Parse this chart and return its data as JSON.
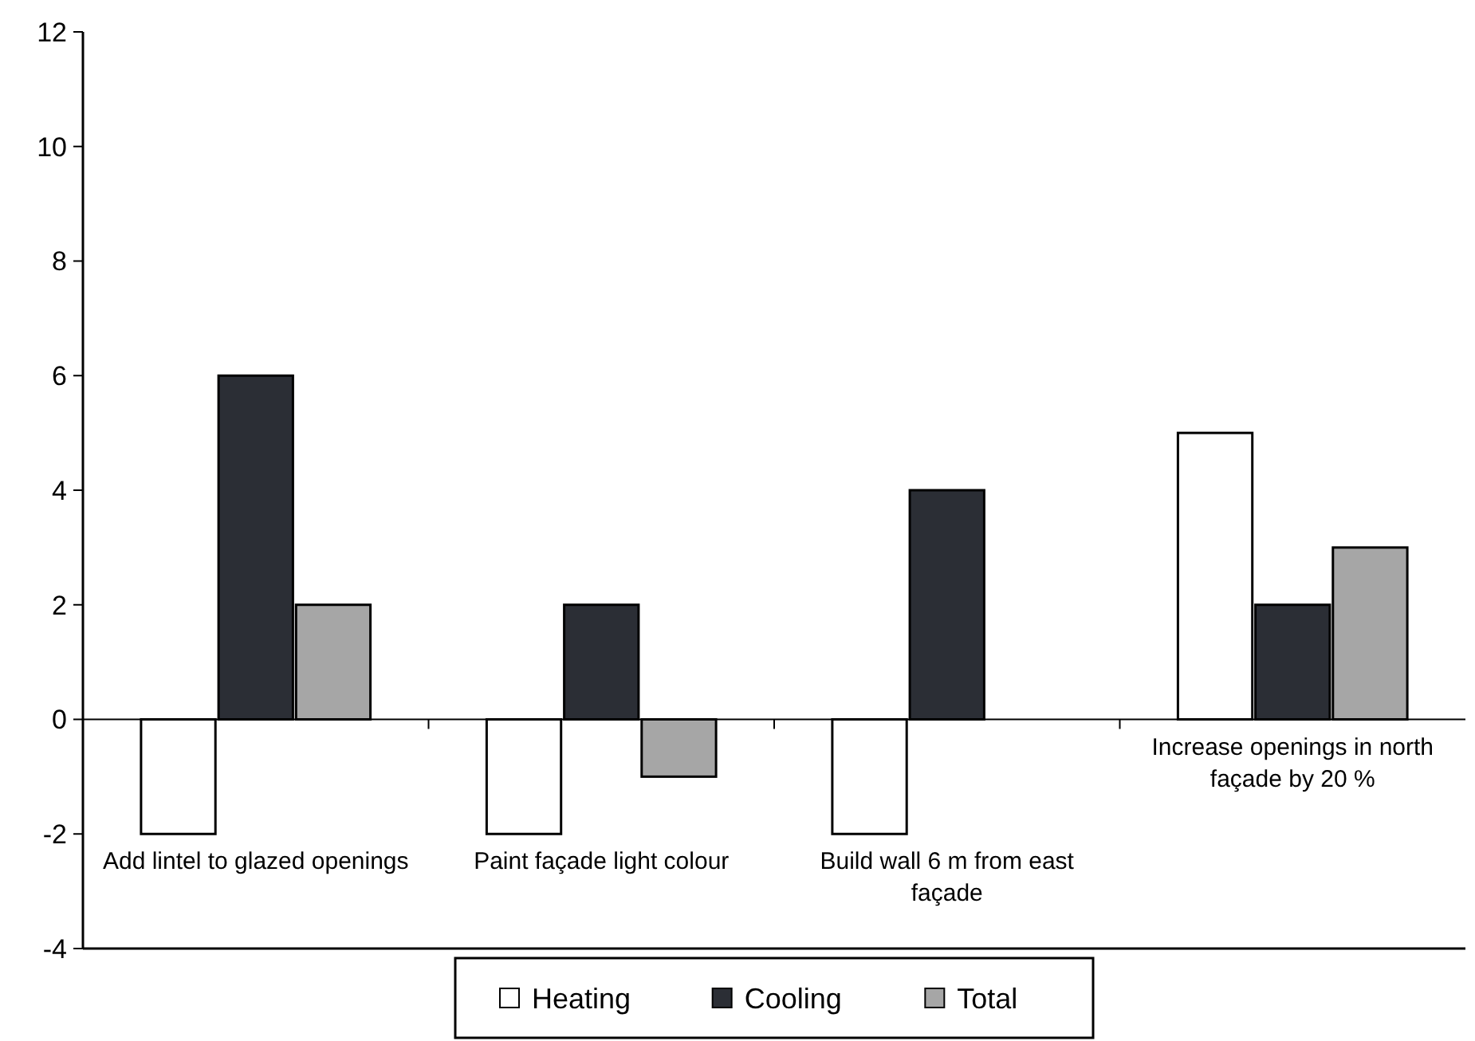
{
  "chart_data": {
    "type": "bar",
    "categories": [
      "Add lintel to glazed openings",
      "Paint façade light colour",
      "Build wall 6 m from east façade",
      "Increase openings in north façade by 20 %"
    ],
    "series": [
      {
        "name": "Heating",
        "color": "#ffffff",
        "values": [
          -2,
          -2,
          -2,
          5
        ]
      },
      {
        "name": "Cooling",
        "color": "#2b2e35",
        "values": [
          6,
          2,
          4,
          2
        ]
      },
      {
        "name": "Total",
        "color": "#a6a6a6",
        "values": [
          2,
          -1,
          null,
          3
        ]
      }
    ],
    "ylim": [
      -4,
      12
    ],
    "yticks": [
      -4,
      -2,
      0,
      2,
      4,
      6,
      8,
      10,
      12
    ],
    "legend": "bottom"
  }
}
